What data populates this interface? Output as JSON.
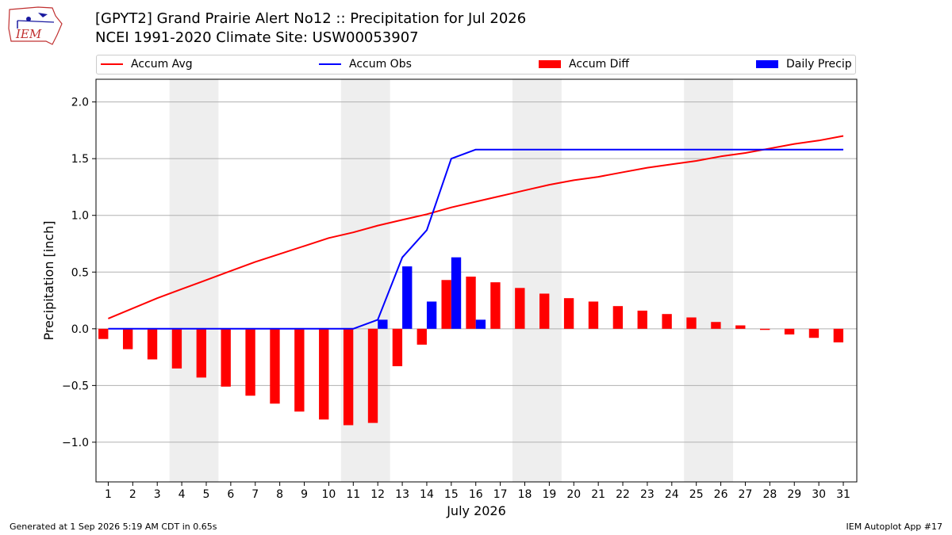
{
  "header": {
    "logo_text": "IEM",
    "title_line1": "[GPYT2] Grand Prairie Alert No12 :: Precipitation for Jul 2026",
    "title_line2": "NCEI 1991-2020 Climate Site: USW00053907"
  },
  "footer": {
    "generated": "Generated at 1 Sep 2026 5:19 AM CDT in 0.65s",
    "app": "IEM Autoplot App #17"
  },
  "chart_data": {
    "type": "bar",
    "xlabel": "July 2026",
    "ylabel": "Precipitation [inch]",
    "ylim": [
      -1.35,
      2.2
    ],
    "yticks": [
      -1.0,
      -0.5,
      0.0,
      0.5,
      1.0,
      1.5,
      2.0
    ],
    "ytick_labels": [
      "−1.0",
      "−0.5",
      "0.0",
      "0.5",
      "1.0",
      "1.5",
      "2.0"
    ],
    "categories": [
      "1",
      "2",
      "3",
      "4",
      "5",
      "6",
      "7",
      "8",
      "9",
      "10",
      "11",
      "12",
      "13",
      "14",
      "15",
      "16",
      "17",
      "18",
      "19",
      "20",
      "21",
      "22",
      "23",
      "24",
      "25",
      "26",
      "27",
      "28",
      "29",
      "30",
      "31"
    ],
    "weekend_days": [
      4,
      5,
      11,
      12,
      18,
      19,
      25,
      26
    ],
    "grid": "horizontal",
    "legend_position": "top",
    "colors": {
      "accum_avg": "#ff0000",
      "accum_obs": "#0000ff",
      "accum_diff": "#ff0000",
      "daily_precip": "#0000ff",
      "weekend_band": "#eeeeee",
      "grid": "#b0b0b0"
    },
    "series": [
      {
        "name": "Accum Avg",
        "kind": "line",
        "values": [
          0.09,
          0.18,
          0.27,
          0.35,
          0.43,
          0.51,
          0.59,
          0.66,
          0.73,
          0.8,
          0.85,
          0.91,
          0.96,
          1.01,
          1.07,
          1.12,
          1.17,
          1.22,
          1.27,
          1.31,
          1.34,
          1.38,
          1.42,
          1.45,
          1.48,
          1.52,
          1.55,
          1.59,
          1.63,
          1.66,
          1.7
        ]
      },
      {
        "name": "Accum Obs",
        "kind": "line",
        "values": [
          0.0,
          0.0,
          0.0,
          0.0,
          0.0,
          0.0,
          0.0,
          0.0,
          0.0,
          0.0,
          0.0,
          0.08,
          0.63,
          0.87,
          1.5,
          1.58,
          1.58,
          1.58,
          1.58,
          1.58,
          1.58,
          1.58,
          1.58,
          1.58,
          1.58,
          1.58,
          1.58,
          1.58,
          1.58,
          1.58,
          1.58
        ]
      },
      {
        "name": "Accum Diff",
        "kind": "bar",
        "values": [
          -0.09,
          -0.18,
          -0.27,
          -0.35,
          -0.43,
          -0.51,
          -0.59,
          -0.66,
          -0.73,
          -0.8,
          -0.85,
          -0.83,
          -0.33,
          -0.14,
          0.43,
          0.46,
          0.41,
          0.36,
          0.31,
          0.27,
          0.24,
          0.2,
          0.16,
          0.13,
          0.1,
          0.06,
          0.03,
          -0.01,
          -0.05,
          -0.08,
          -0.12
        ]
      },
      {
        "name": "Daily Precip",
        "kind": "bar",
        "values": [
          0,
          0,
          0,
          0,
          0,
          0,
          0,
          0,
          0,
          0,
          0,
          0.08,
          0.55,
          0.24,
          0.63,
          0.08,
          0,
          0,
          0,
          0,
          0,
          0,
          0,
          0,
          0,
          0,
          0,
          0,
          0,
          0,
          0
        ]
      }
    ]
  }
}
